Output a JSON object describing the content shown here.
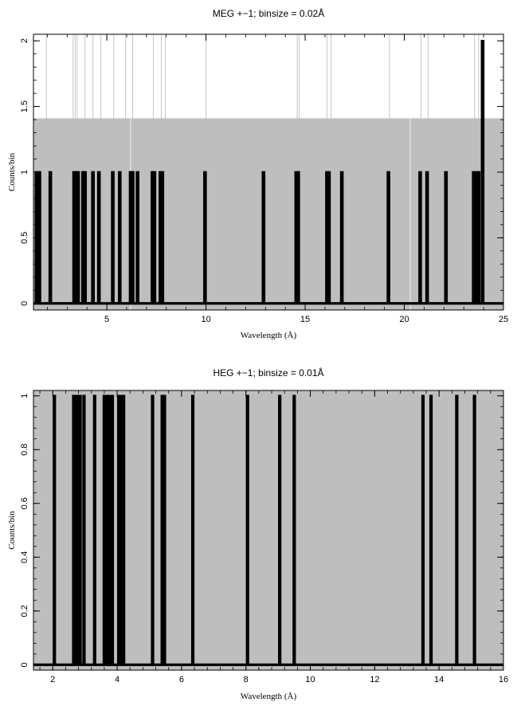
{
  "chart_data": [
    {
      "type": "bar",
      "title": "MEG +−1; binsize = 0.02Å",
      "xlabel": "Wavelength (Å)",
      "ylabel": "Counts/bin",
      "xlim": [
        1.3,
        25
      ],
      "ylim": [
        -0.05,
        2.05
      ],
      "xticks": [
        "5",
        "10",
        "15",
        "20",
        "25"
      ],
      "yticks": [
        "0",
        "0.5",
        "1",
        "1.5",
        "2"
      ],
      "background_color": "#bebebe",
      "background_level": 1.41,
      "background_gaps": [
        6.2,
        20.3
      ],
      "bar_color": "#000000",
      "reference_color": "#bebebe",
      "reference_lines": [
        1.95,
        3.3,
        3.4,
        3.5,
        3.9,
        4.3,
        4.7,
        5.35,
        5.95,
        6.3,
        7.35,
        7.75,
        7.95,
        10.0,
        14.6,
        14.7,
        16.1,
        16.3,
        19.25,
        20.85,
        21.2,
        23.55,
        23.75
      ],
      "bar_width": 0.08,
      "x": [
        1.45,
        1.6,
        2.15,
        3.35,
        3.45,
        3.55,
        3.8,
        3.9,
        4.3,
        4.6,
        5.3,
        5.65,
        6.2,
        6.3,
        6.55,
        7.3,
        7.4,
        7.7,
        7.8,
        9.95,
        12.9,
        14.55,
        14.65,
        16.1,
        16.2,
        16.85,
        19.2,
        20.8,
        21.15,
        22.1,
        23.5,
        23.65,
        23.75,
        23.95
      ],
      "y": [
        1,
        1,
        1,
        1,
        1,
        1,
        1,
        1,
        1,
        1,
        1,
        1,
        1,
        1,
        1,
        1,
        1,
        1,
        1,
        1,
        1,
        1,
        1,
        1,
        1,
        1,
        1,
        1,
        1,
        1,
        1,
        1,
        1,
        2
      ]
    },
    {
      "type": "bar",
      "title": "HEG +−1; binsize = 0.01Å",
      "xlabel": "Wavelength (Å)",
      "ylabel": "Counts/bin",
      "xlim": [
        1.4,
        16
      ],
      "ylim": [
        -0.02,
        1.02
      ],
      "xticks": [
        "2",
        "4",
        "6",
        "8",
        "10",
        "12",
        "14",
        "16"
      ],
      "yticks": [
        "0",
        "0.2",
        "0.4",
        "0.6",
        "0.8",
        "1"
      ],
      "background_color": "#bebebe",
      "background_level": 1.02,
      "background_gaps": [],
      "bar_color": "#000000",
      "reference_color": "#bebebe",
      "reference_lines": [],
      "bar_width": 0.04,
      "x": [
        2.05,
        2.65,
        2.72,
        2.78,
        2.85,
        2.97,
        3.3,
        3.6,
        3.7,
        3.78,
        3.85,
        4.05,
        4.13,
        4.2,
        5.1,
        5.4,
        5.47,
        6.35,
        8.05,
        9.05,
        9.5,
        13.5,
        13.75,
        14.55,
        15.1
      ],
      "y": [
        1,
        1,
        1,
        1,
        1,
        1,
        1,
        1,
        1,
        1,
        1,
        1,
        1,
        1,
        1,
        1,
        1,
        1,
        1,
        1,
        1,
        1,
        1,
        1,
        1
      ]
    }
  ]
}
